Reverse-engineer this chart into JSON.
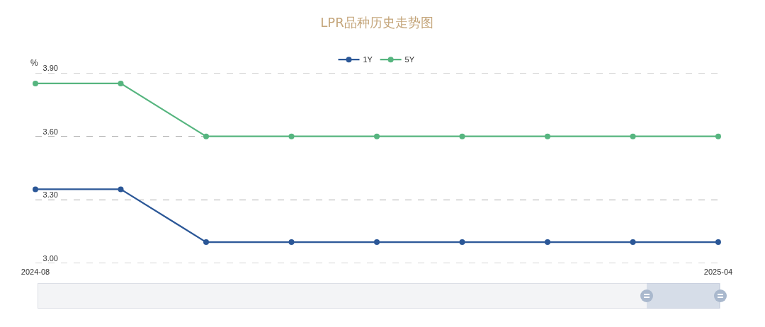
{
  "chart_data": {
    "type": "line",
    "title": "LPR品种历史走势图",
    "ylabel": "%",
    "categories": [
      "2024-08",
      null,
      null,
      null,
      null,
      null,
      null,
      null,
      "2025-04"
    ],
    "series": [
      {
        "name": "1Y",
        "color": "#2b5797",
        "values": [
          3.35,
          3.35,
          3.1,
          3.1,
          3.1,
          3.1,
          3.1,
          3.1,
          3.1
        ]
      },
      {
        "name": "5Y",
        "color": "#56b57f",
        "values": [
          3.85,
          3.85,
          3.6,
          3.6,
          3.6,
          3.6,
          3.6,
          3.6,
          3.6
        ]
      }
    ],
    "ylim": [
      3.0,
      3.9
    ],
    "yticks": [
      {
        "value": 3.0,
        "label": "3.00"
      },
      {
        "value": 3.3,
        "label": "3.30"
      },
      {
        "value": 3.6,
        "label": "3.60"
      },
      {
        "value": 3.9,
        "label": "3.90"
      }
    ],
    "grid": "y",
    "legend": "top",
    "marker": "circle",
    "line_style": "solid"
  }
}
